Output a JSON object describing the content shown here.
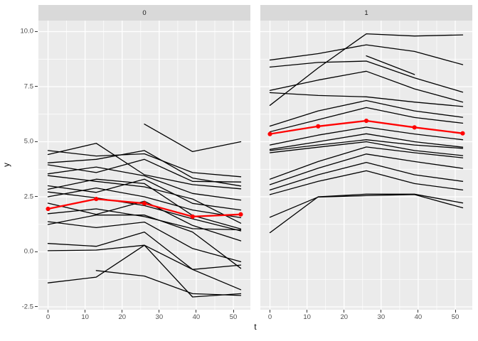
{
  "chart_data": {
    "type": "line",
    "description": "Faceted spaghetti plot of individual trajectories y over t with red mean profile, ggplot2 grey theme",
    "xlabel": "t",
    "ylabel": "y",
    "x": [
      0,
      13,
      26,
      39,
      52
    ],
    "x_ticks": [
      0,
      10,
      20,
      30,
      40,
      50
    ],
    "x_tick_labels": [
      "0",
      "10",
      "20",
      "30",
      "40",
      "50"
    ],
    "x_minor_ticks": [
      5,
      15,
      25,
      35,
      45
    ],
    "y_ticks": [
      10,
      7.5,
      5,
      2.5,
      0,
      -2.5
    ],
    "y_tick_labels": [
      "10.0",
      "7.5",
      "5.0",
      "2.5",
      "0.0",
      "-2.5"
    ],
    "y_minor_ticks": [
      8.75,
      6.25,
      3.75,
      1.25,
      -1.25
    ],
    "xlim": [
      -2.6,
      54.6
    ],
    "ylim": [
      -2.63,
      10.5
    ],
    "grid": "white major and minor gridlines on grey panel",
    "legend": "none",
    "colors": {
      "individual_line": "#000000",
      "mean_line": "#ff0000",
      "panel_background": "#ebebeb",
      "strip_background": "#d9d9d9",
      "gridline": "#ffffff",
      "tick_label": "#4d4d4d"
    },
    "facets": [
      {
        "label": "0",
        "individual_lines": [
          [
            null,
            null,
            5.8,
            4.55,
            5.0
          ],
          [
            4.6,
            4.35,
            4.45,
            3.6,
            3.41
          ],
          [
            4.42,
            4.93,
            3.5,
            3.05,
            2.86
          ],
          [
            4.04,
            4.2,
            4.6,
            3.35,
            2.99
          ],
          [
            3.95,
            3.6,
            4.2,
            3.2,
            3.17
          ],
          [
            3.54,
            3.85,
            3.45,
            2.65,
            2.35
          ],
          [
            3.46,
            3.2,
            2.95,
            2.4,
            1.3
          ],
          [
            3.0,
            2.7,
            3.3,
            2.2,
            1.9
          ],
          [
            2.84,
            3.3,
            3.1,
            1.65,
            1.04
          ],
          [
            2.72,
            2.45,
            2.1,
            1.5,
            0.95
          ],
          [
            2.5,
            2.9,
            2.5,
            1.9,
            1.55
          ],
          [
            2.21,
            1.7,
            2.3,
            1.2,
            0.5
          ],
          [
            1.73,
            1.95,
            1.6,
            1.05,
            1.0
          ],
          [
            1.37,
            1.1,
            1.35,
            0.15,
            -0.45
          ],
          [
            1.24,
            1.67,
            1.67,
            0.9,
            -0.75
          ],
          [
            0.38,
            0.25,
            0.9,
            -0.8,
            -0.6
          ],
          [
            0.05,
            0.08,
            0.3,
            -2.05,
            -1.9
          ],
          [
            -1.41,
            -1.15,
            0.3,
            -0.8,
            -1.72
          ],
          [
            null,
            -0.85,
            -1.1,
            -1.9,
            -1.98
          ]
        ],
        "mean_line": [
          1.95,
          2.4,
          2.2,
          1.6,
          1.7
        ]
      },
      {
        "label": "1",
        "individual_lines": [
          [
            6.65,
            8.35,
            9.9,
            9.8,
            9.85
          ],
          [
            8.71,
            9.0,
            9.4,
            9.1,
            8.5
          ],
          [
            8.39,
            8.6,
            8.66,
            7.9,
            7.25
          ],
          [
            7.33,
            7.8,
            8.2,
            7.4,
            6.8
          ],
          [
            7.23,
            7.1,
            7.04,
            6.8,
            6.6
          ],
          [
            null,
            null,
            8.9,
            8.05,
            null
          ],
          [
            5.71,
            6.4,
            6.87,
            6.4,
            6.11
          ],
          [
            5.45,
            6.0,
            6.55,
            6.1,
            5.84
          ],
          [
            4.85,
            5.3,
            5.66,
            5.35,
            5.09
          ],
          [
            4.65,
            5.0,
            5.36,
            5.0,
            4.75
          ],
          [
            4.6,
            4.85,
            5.09,
            4.85,
            4.7
          ],
          [
            4.5,
            4.75,
            5.0,
            4.6,
            4.37
          ],
          [
            3.3,
            4.1,
            4.76,
            4.5,
            4.27
          ],
          [
            3.05,
            3.8,
            4.44,
            4.1,
            3.79
          ],
          [
            2.81,
            3.5,
            4.06,
            3.5,
            3.2
          ],
          [
            2.6,
            3.2,
            3.68,
            3.1,
            2.81
          ],
          [
            1.57,
            2.49,
            2.55,
            2.6,
            2.0
          ],
          [
            0.87,
            2.5,
            2.62,
            2.62,
            2.22
          ]
        ],
        "mean_line": [
          5.35,
          5.7,
          5.95,
          5.65,
          5.38
        ]
      }
    ]
  }
}
